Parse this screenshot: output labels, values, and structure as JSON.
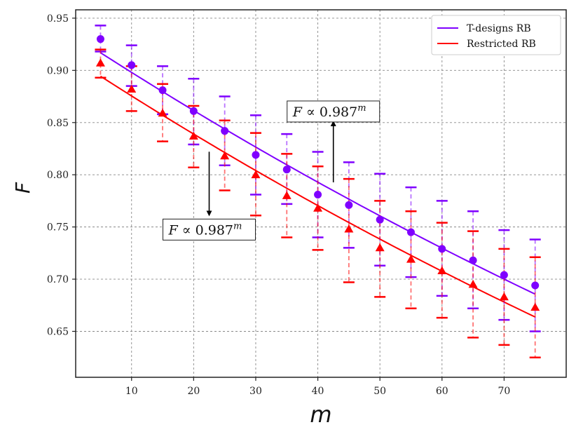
{
  "chart_data": {
    "type": "line",
    "title": "",
    "xlabel": "m",
    "ylabel": "F",
    "xlim": [
      1,
      80
    ],
    "ylim": [
      0.606,
      0.958
    ],
    "xticks": [
      10,
      20,
      30,
      40,
      50,
      60,
      70
    ],
    "yticks": [
      0.65,
      0.7,
      0.75,
      0.8,
      0.85,
      0.9,
      0.95
    ],
    "grid": true,
    "legend_position": "top-right",
    "series": [
      {
        "name": "T-designs RB",
        "color": "#7f00ff",
        "marker": "circle",
        "x": [
          5,
          10,
          15,
          20,
          25,
          30,
          35,
          40,
          45,
          50,
          55,
          60,
          65,
          70,
          75
        ],
        "y": [
          0.93,
          0.905,
          0.881,
          0.861,
          0.842,
          0.819,
          0.805,
          0.781,
          0.771,
          0.757,
          0.745,
          0.729,
          0.718,
          0.704,
          0.694
        ],
        "err_upper": [
          0.943,
          0.924,
          0.904,
          0.892,
          0.875,
          0.857,
          0.839,
          0.822,
          0.812,
          0.801,
          0.788,
          0.775,
          0.765,
          0.747,
          0.738
        ],
        "err_lower": [
          0.918,
          0.885,
          0.858,
          0.829,
          0.809,
          0.781,
          0.772,
          0.74,
          0.73,
          0.713,
          0.702,
          0.684,
          0.672,
          0.661,
          0.65
        ]
      },
      {
        "name": "Restricted RB",
        "color": "#ff0000",
        "marker": "triangle",
        "x": [
          5,
          10,
          15,
          20,
          25,
          30,
          35,
          40,
          45,
          50,
          55,
          60,
          65,
          70,
          75
        ],
        "y": [
          0.907,
          0.882,
          0.859,
          0.837,
          0.818,
          0.8,
          0.78,
          0.768,
          0.748,
          0.73,
          0.719,
          0.708,
          0.695,
          0.683,
          0.673
        ],
        "err_upper": [
          0.92,
          0.904,
          0.887,
          0.866,
          0.852,
          0.84,
          0.82,
          0.808,
          0.796,
          0.775,
          0.765,
          0.754,
          0.746,
          0.729,
          0.721
        ],
        "err_lower": [
          0.893,
          0.861,
          0.832,
          0.807,
          0.785,
          0.761,
          0.74,
          0.728,
          0.697,
          0.683,
          0.672,
          0.663,
          0.644,
          0.637,
          0.625
        ]
      }
    ],
    "annotations": [
      {
        "text_base": "F ∝ 0.987",
        "exponent": "m",
        "series": "T-designs RB",
        "arrow": "up",
        "at_x": 42.5
      },
      {
        "text_base": "F ∝ 0.987",
        "exponent": "m",
        "series": "Restricted RB",
        "arrow": "down",
        "at_x": 22.5
      }
    ]
  }
}
